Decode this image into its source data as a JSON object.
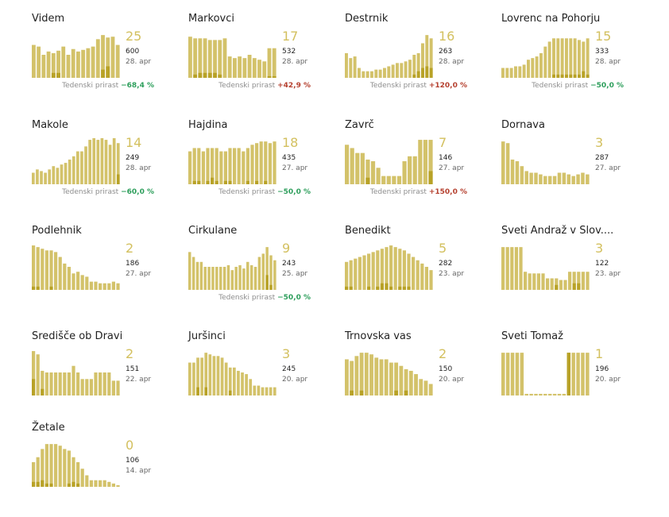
{
  "growth_label": "Tedenski prirast",
  "colors": {
    "bar": "#d3c26a",
    "bar_overlay": "#b8a227",
    "number": "#d3c05f",
    "positive": "#b5402f",
    "negative": "#2d9e5b"
  },
  "chart_data": [
    {
      "type": "bar",
      "title": "Videm",
      "big": "25",
      "small": "600",
      "date": "28. apr",
      "growth": "−68,4 %",
      "growth_sign": "neg",
      "values": [
        40,
        38,
        28,
        32,
        30,
        33,
        38,
        28,
        35,
        32,
        34,
        36,
        38,
        47,
        52,
        49,
        50,
        40
      ],
      "overlay": [
        0,
        0,
        0,
        0,
        6,
        6,
        0,
        0,
        0,
        0,
        0,
        0,
        0,
        0,
        10,
        14,
        0,
        0
      ]
    },
    {
      "type": "bar",
      "title": "Markovci",
      "big": "17",
      "small": "532",
      "date": "28. apr",
      "growth": "+42,9 %",
      "growth_sign": "pos",
      "values": [
        50,
        48,
        48,
        48,
        46,
        46,
        46,
        48,
        26,
        24,
        26,
        24,
        28,
        24,
        22,
        20,
        36,
        36
      ],
      "overlay": [
        0,
        4,
        6,
        6,
        6,
        6,
        4,
        0,
        0,
        0,
        0,
        0,
        0,
        0,
        0,
        0,
        2,
        2
      ]
    },
    {
      "type": "bar",
      "title": "Destrnik",
      "big": "16",
      "small": "263",
      "date": "28. apr",
      "growth": "+120,0 %",
      "growth_sign": "pos",
      "values": [
        30,
        24,
        26,
        12,
        8,
        8,
        8,
        10,
        10,
        12,
        14,
        16,
        18,
        18,
        20,
        22,
        28,
        30,
        42,
        52,
        48
      ],
      "overlay": [
        0,
        0,
        0,
        0,
        0,
        0,
        0,
        0,
        0,
        0,
        0,
        0,
        0,
        0,
        0,
        0,
        4,
        8,
        12,
        14,
        12
      ]
    },
    {
      "type": "bar",
      "title": "Lovrenc na Pohorju",
      "big": "15",
      "small": "333",
      "date": "28. apr",
      "growth": "−50,0 %",
      "growth_sign": "neg",
      "values": [
        12,
        12,
        12,
        14,
        14,
        16,
        22,
        24,
        26,
        30,
        38,
        44,
        48,
        48,
        48,
        48,
        48,
        48,
        46,
        44,
        48
      ],
      "overlay": [
        0,
        0,
        0,
        0,
        0,
        0,
        0,
        0,
        0,
        0,
        0,
        0,
        4,
        4,
        4,
        4,
        4,
        4,
        4,
        8,
        4
      ]
    },
    {
      "type": "bar",
      "title": "Makole",
      "big": "14",
      "small": "249",
      "date": "28. apr",
      "growth": "−60,0 %",
      "growth_sign": "neg",
      "values": [
        14,
        18,
        16,
        14,
        18,
        22,
        20,
        24,
        26,
        30,
        34,
        40,
        40,
        46,
        54,
        56,
        54,
        56,
        54,
        48,
        56,
        50
      ],
      "overlay": [
        0,
        0,
        0,
        0,
        0,
        0,
        0,
        0,
        0,
        0,
        0,
        0,
        0,
        0,
        0,
        0,
        0,
        0,
        0,
        0,
        0,
        12
      ]
    },
    {
      "type": "bar",
      "title": "Hajdina",
      "big": "18",
      "small": "435",
      "date": "27. apr",
      "growth": "−50,0 %",
      "growth_sign": "neg",
      "values": [
        40,
        44,
        44,
        40,
        44,
        44,
        44,
        40,
        40,
        44,
        44,
        44,
        40,
        44,
        48,
        50,
        52,
        52,
        50,
        52
      ],
      "overlay": [
        0,
        4,
        4,
        0,
        4,
        8,
        4,
        0,
        4,
        4,
        0,
        0,
        0,
        4,
        0,
        4,
        0,
        4,
        0,
        0
      ]
    },
    {
      "type": "bar",
      "title": "Zavrč",
      "big": "7",
      "small": "146",
      "date": "27. apr",
      "growth": "+150,0 %",
      "growth_sign": "pos",
      "values": [
        48,
        44,
        38,
        38,
        30,
        28,
        20,
        10,
        10,
        10,
        10,
        28,
        34,
        34,
        54,
        54,
        54
      ],
      "overlay": [
        0,
        0,
        0,
        0,
        8,
        0,
        0,
        0,
        0,
        0,
        0,
        0,
        0,
        0,
        0,
        0,
        16
      ]
    },
    {
      "type": "bar",
      "title": "Dornava",
      "big": "3",
      "small": "287",
      "date": "27. apr",
      "growth": "",
      "growth_sign": "",
      "values": [
        52,
        50,
        30,
        28,
        22,
        16,
        14,
        14,
        12,
        10,
        10,
        10,
        14,
        14,
        12,
        10,
        12,
        14,
        12
      ],
      "overlay": [
        0,
        0,
        0,
        0,
        0,
        0,
        0,
        0,
        0,
        0,
        0,
        0,
        0,
        0,
        0,
        0,
        0,
        0,
        0
      ]
    },
    {
      "type": "bar",
      "title": "Podlehnik",
      "big": "2",
      "small": "186",
      "date": "27. apr",
      "growth": "",
      "growth_sign": "",
      "values": [
        54,
        52,
        50,
        48,
        48,
        46,
        40,
        32,
        28,
        20,
        22,
        18,
        16,
        10,
        10,
        8,
        8,
        8,
        10,
        8
      ],
      "overlay": [
        4,
        4,
        0,
        0,
        4,
        0,
        0,
        0,
        0,
        0,
        0,
        0,
        0,
        0,
        0,
        0,
        0,
        0,
        0,
        0
      ]
    },
    {
      "type": "bar",
      "title": "Cirkulane",
      "big": "9",
      "small": "243",
      "date": "25. apr",
      "growth": "−50,0 %",
      "growth_sign": "neg",
      "values": [
        46,
        40,
        34,
        34,
        28,
        28,
        28,
        28,
        28,
        28,
        30,
        24,
        28,
        30,
        26,
        34,
        30,
        28,
        40,
        44,
        52,
        42,
        36
      ],
      "overlay": [
        0,
        0,
        0,
        0,
        0,
        0,
        0,
        0,
        0,
        0,
        0,
        0,
        0,
        0,
        0,
        0,
        0,
        0,
        0,
        0,
        18,
        6,
        0
      ]
    },
    {
      "type": "bar",
      "title": "Benedikt",
      "big": "5",
      "small": "282",
      "date": "23. apr",
      "growth": "",
      "growth_sign": "",
      "values": [
        34,
        36,
        38,
        40,
        42,
        44,
        46,
        48,
        50,
        52,
        54,
        52,
        50,
        48,
        44,
        40,
        36,
        32,
        28,
        24
      ],
      "overlay": [
        4,
        4,
        0,
        0,
        0,
        4,
        0,
        4,
        8,
        8,
        4,
        0,
        4,
        4,
        4,
        0,
        0,
        0,
        0,
        0
      ]
    },
    {
      "type": "bar",
      "title": "Sveti Andraž v Slov....",
      "big": "3",
      "small": "122",
      "date": "23. apr",
      "growth": "",
      "growth_sign": "",
      "values": [
        52,
        52,
        52,
        52,
        52,
        22,
        20,
        20,
        20,
        20,
        14,
        14,
        14,
        12,
        12,
        22,
        22,
        22,
        22,
        22
      ],
      "overlay": [
        0,
        0,
        0,
        0,
        0,
        0,
        0,
        0,
        0,
        0,
        0,
        0,
        6,
        0,
        0,
        0,
        8,
        8,
        0,
        0
      ]
    },
    {
      "type": "bar",
      "title": "Središče ob Dravi",
      "big": "2",
      "small": "151",
      "date": "22. apr",
      "growth": "",
      "growth_sign": "",
      "values": [
        54,
        50,
        30,
        28,
        28,
        28,
        28,
        28,
        28,
        36,
        28,
        20,
        20,
        20,
        28,
        28,
        28,
        28,
        18,
        18
      ],
      "overlay": [
        20,
        0,
        8,
        0,
        0,
        0,
        0,
        0,
        0,
        0,
        0,
        0,
        0,
        0,
        0,
        0,
        0,
        0,
        0,
        0
      ]
    },
    {
      "type": "bar",
      "title": "Juršinci",
      "big": "3",
      "small": "245",
      "date": "20. apr",
      "growth": "",
      "growth_sign": "",
      "values": [
        40,
        40,
        46,
        46,
        52,
        50,
        48,
        48,
        46,
        40,
        34,
        34,
        30,
        28,
        26,
        20,
        12,
        12,
        10,
        10,
        10,
        10
      ],
      "overlay": [
        0,
        0,
        10,
        0,
        10,
        0,
        0,
        0,
        0,
        0,
        6,
        0,
        0,
        0,
        0,
        0,
        0,
        0,
        0,
        0,
        0,
        0
      ]
    },
    {
      "type": "bar",
      "title": "Trnovska vas",
      "big": "2",
      "small": "150",
      "date": "20. apr",
      "growth": "",
      "growth_sign": "",
      "values": [
        44,
        42,
        48,
        52,
        52,
        50,
        46,
        44,
        44,
        40,
        40,
        36,
        32,
        30,
        26,
        20,
        18,
        14
      ],
      "overlay": [
        0,
        6,
        0,
        6,
        0,
        0,
        0,
        0,
        0,
        0,
        6,
        0,
        6,
        0,
        0,
        0,
        0,
        0
      ]
    },
    {
      "type": "bar",
      "title": "Sveti Tomaž",
      "big": "1",
      "small": "196",
      "date": "20. apr",
      "growth": "",
      "growth_sign": "",
      "values": [
        52,
        52,
        52,
        52,
        52,
        2,
        2,
        2,
        2,
        2,
        2,
        2,
        2,
        2,
        52,
        52,
        52,
        52,
        52
      ],
      "overlay": [
        0,
        0,
        0,
        0,
        0,
        0,
        0,
        0,
        0,
        0,
        0,
        0,
        0,
        0,
        52,
        0,
        0,
        0,
        0
      ]
    },
    {
      "type": "bar",
      "title": "Žetale",
      "big": "0",
      "small": "106",
      "date": "14. apr",
      "growth": "",
      "growth_sign": "",
      "values": [
        30,
        36,
        46,
        52,
        52,
        52,
        50,
        46,
        44,
        36,
        30,
        22,
        14,
        8,
        8,
        8,
        8,
        6,
        4,
        2
      ],
      "overlay": [
        6,
        6,
        8,
        4,
        4,
        0,
        0,
        0,
        4,
        6,
        4,
        0,
        0,
        0,
        0,
        0,
        0,
        0,
        0,
        0
      ]
    }
  ]
}
